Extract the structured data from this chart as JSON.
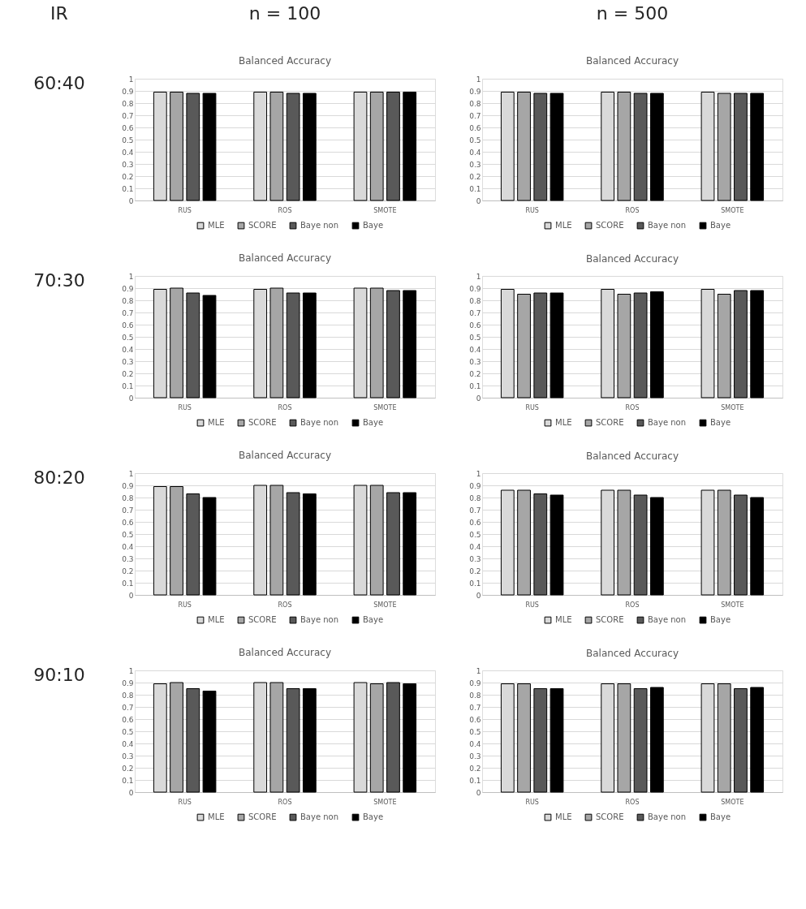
{
  "chart_data": [
    {
      "type": "bar",
      "title": "Balanced Accuracy",
      "annotations": [
        "IR",
        "n = 100",
        "60:40"
      ],
      "categories": [
        "RUS",
        "ROS",
        "SMOTE"
      ],
      "series": [
        {
          "name": "MLE",
          "color": "#d9d9d9",
          "values": [
            0.89,
            0.89,
            0.89
          ]
        },
        {
          "name": "SCORE",
          "color": "#a6a6a6",
          "values": [
            0.89,
            0.89,
            0.89
          ]
        },
        {
          "name": "Baye non",
          "color": "#595959",
          "values": [
            0.88,
            0.88,
            0.89
          ]
        },
        {
          "name": "Baye",
          "color": "#000000",
          "values": [
            0.88,
            0.88,
            0.89
          ]
        }
      ],
      "ylim": [
        0,
        1
      ],
      "yticks": [
        0,
        0.1,
        0.2,
        0.3,
        0.4,
        0.5,
        0.6,
        0.7,
        0.8,
        0.9,
        1
      ],
      "grid": "y",
      "legend": "bottom"
    },
    {
      "type": "bar",
      "title": "Balanced Accuracy",
      "annotations": [
        "n = 500"
      ],
      "categories": [
        "RUS",
        "ROS",
        "SMOTE"
      ],
      "series": [
        {
          "name": "MLE",
          "color": "#d9d9d9",
          "values": [
            0.89,
            0.89,
            0.89
          ]
        },
        {
          "name": "SCORE",
          "color": "#a6a6a6",
          "values": [
            0.89,
            0.89,
            0.88
          ]
        },
        {
          "name": "Baye non",
          "color": "#595959",
          "values": [
            0.88,
            0.88,
            0.88
          ]
        },
        {
          "name": "Baye",
          "color": "#000000",
          "values": [
            0.88,
            0.88,
            0.88
          ]
        }
      ],
      "ylim": [
        0,
        1
      ],
      "yticks": [
        0,
        0.1,
        0.2,
        0.3,
        0.4,
        0.5,
        0.6,
        0.7,
        0.8,
        0.9,
        1
      ],
      "grid": "y",
      "legend": "bottom"
    },
    {
      "type": "bar",
      "title": "Balanced Accuracy",
      "annotations": [
        "70:30"
      ],
      "categories": [
        "RUS",
        "ROS",
        "SMOTE"
      ],
      "series": [
        {
          "name": "MLE",
          "color": "#d9d9d9",
          "values": [
            0.89,
            0.89,
            0.9
          ]
        },
        {
          "name": "SCORE",
          "color": "#a6a6a6",
          "values": [
            0.9,
            0.9,
            0.9
          ]
        },
        {
          "name": "Baye non",
          "color": "#595959",
          "values": [
            0.86,
            0.86,
            0.88
          ]
        },
        {
          "name": "Baye",
          "color": "#000000",
          "values": [
            0.84,
            0.86,
            0.88
          ]
        }
      ],
      "ylim": [
        0,
        1
      ],
      "yticks": [
        0,
        0.1,
        0.2,
        0.3,
        0.4,
        0.5,
        0.6,
        0.7,
        0.8,
        0.9,
        1
      ],
      "grid": "y",
      "legend": "bottom"
    },
    {
      "type": "bar",
      "title": "Balanced Accuracy",
      "categories": [
        "RUS",
        "ROS",
        "SMOTE"
      ],
      "series": [
        {
          "name": "MLE",
          "color": "#d9d9d9",
          "values": [
            0.89,
            0.89,
            0.89
          ]
        },
        {
          "name": "SCORE",
          "color": "#a6a6a6",
          "values": [
            0.85,
            0.85,
            0.85
          ]
        },
        {
          "name": "Baye non",
          "color": "#595959",
          "values": [
            0.86,
            0.86,
            0.88
          ]
        },
        {
          "name": "Baye",
          "color": "#000000",
          "values": [
            0.86,
            0.87,
            0.88
          ]
        }
      ],
      "ylim": [
        0,
        1
      ],
      "yticks": [
        0,
        0.1,
        0.2,
        0.3,
        0.4,
        0.5,
        0.6,
        0.7,
        0.8,
        0.9,
        1
      ],
      "grid": "y",
      "legend": "bottom"
    },
    {
      "type": "bar",
      "title": "Balanced Accuracy",
      "annotations": [
        "80:20"
      ],
      "categories": [
        "RUS",
        "ROS",
        "SMOTE"
      ],
      "series": [
        {
          "name": "MLE",
          "color": "#d9d9d9",
          "values": [
            0.89,
            0.9,
            0.9
          ]
        },
        {
          "name": "SCORE",
          "color": "#a6a6a6",
          "values": [
            0.89,
            0.9,
            0.9
          ]
        },
        {
          "name": "Baye non",
          "color": "#595959",
          "values": [
            0.83,
            0.84,
            0.84
          ]
        },
        {
          "name": "Baye",
          "color": "#000000",
          "values": [
            0.8,
            0.83,
            0.84
          ]
        }
      ],
      "ylim": [
        0,
        1
      ],
      "yticks": [
        0,
        0.1,
        0.2,
        0.3,
        0.4,
        0.5,
        0.6,
        0.7,
        0.8,
        0.9,
        1
      ],
      "grid": "y",
      "legend": "bottom"
    },
    {
      "type": "bar",
      "title": "Balanced Accuracy",
      "categories": [
        "RUS",
        "ROS",
        "SMOTE"
      ],
      "series": [
        {
          "name": "MLE",
          "color": "#d9d9d9",
          "values": [
            0.86,
            0.86,
            0.86
          ]
        },
        {
          "name": "SCORE",
          "color": "#a6a6a6",
          "values": [
            0.86,
            0.86,
            0.86
          ]
        },
        {
          "name": "Baye non",
          "color": "#595959",
          "values": [
            0.83,
            0.82,
            0.82
          ]
        },
        {
          "name": "Baye",
          "color": "#000000",
          "values": [
            0.82,
            0.8,
            0.8
          ]
        }
      ],
      "ylim": [
        0,
        1
      ],
      "yticks": [
        0,
        0.1,
        0.2,
        0.3,
        0.4,
        0.5,
        0.6,
        0.7,
        0.8,
        0.9,
        1
      ],
      "grid": "y",
      "legend": "bottom"
    },
    {
      "type": "bar",
      "title": "Balanced Accuracy",
      "annotations": [
        "90:10"
      ],
      "categories": [
        "RUS",
        "ROS",
        "SMOTE"
      ],
      "series": [
        {
          "name": "MLE",
          "color": "#d9d9d9",
          "values": [
            0.89,
            0.9,
            0.9
          ]
        },
        {
          "name": "SCORE",
          "color": "#a6a6a6",
          "values": [
            0.9,
            0.9,
            0.89
          ]
        },
        {
          "name": "Baye non",
          "color": "#595959",
          "values": [
            0.85,
            0.85,
            0.9
          ]
        },
        {
          "name": "Baye",
          "color": "#000000",
          "values": [
            0.83,
            0.85,
            0.89
          ]
        }
      ],
      "ylim": [
        0,
        1
      ],
      "yticks": [
        0,
        0.1,
        0.2,
        0.3,
        0.4,
        0.5,
        0.6,
        0.7,
        0.8,
        0.9,
        1
      ],
      "grid": "y",
      "legend": "bottom"
    },
    {
      "type": "bar",
      "title": "Balanced Accuracy",
      "categories": [
        "RUS",
        "ROS",
        "SMOTE"
      ],
      "series": [
        {
          "name": "MLE",
          "color": "#d9d9d9",
          "values": [
            0.89,
            0.89,
            0.89
          ]
        },
        {
          "name": "SCORE",
          "color": "#a6a6a6",
          "values": [
            0.89,
            0.89,
            0.89
          ]
        },
        {
          "name": "Baye non",
          "color": "#595959",
          "values": [
            0.85,
            0.85,
            0.85
          ]
        },
        {
          "name": "Baye",
          "color": "#000000",
          "values": [
            0.85,
            0.86,
            0.86
          ]
        }
      ],
      "ylim": [
        0,
        1
      ],
      "yticks": [
        0,
        0.1,
        0.2,
        0.3,
        0.4,
        0.5,
        0.6,
        0.7,
        0.8,
        0.9,
        1
      ],
      "grid": "y",
      "legend": "bottom"
    }
  ]
}
